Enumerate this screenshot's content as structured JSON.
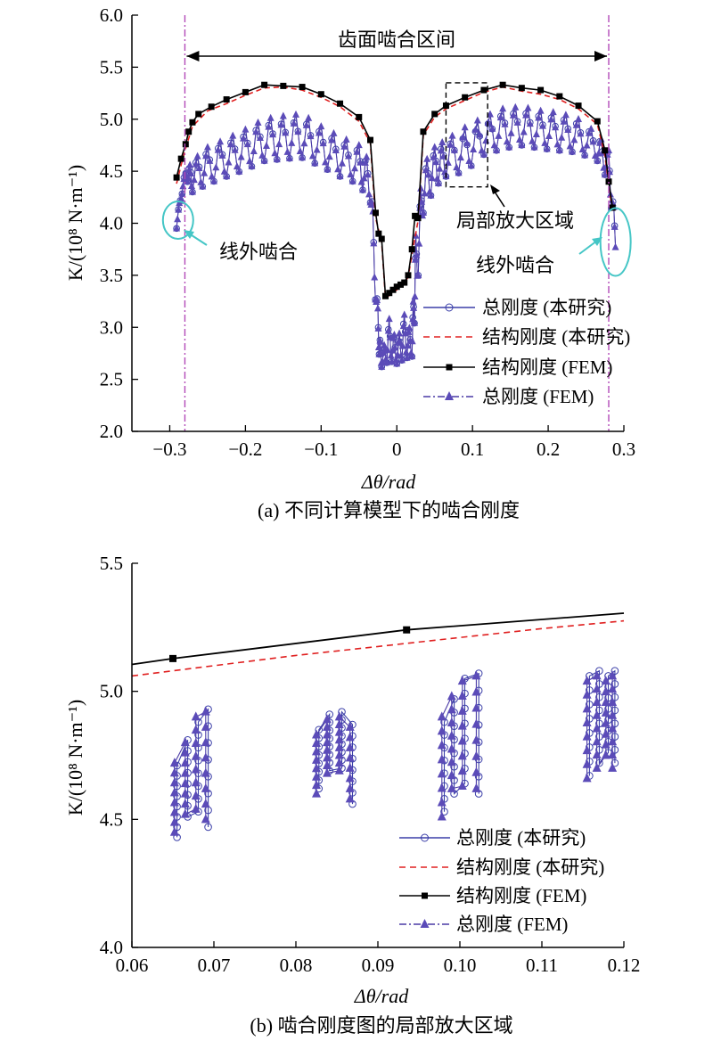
{
  "chart_data": [
    {
      "type": "line",
      "caption": "(a) 不同计算模型下的啮合刚度",
      "xlabel": "Δθ/rad",
      "ylabel": "K/(10⁸ N·m⁻¹)",
      "xlim": [
        -0.35,
        0.3
      ],
      "ylim": [
        2.0,
        6.0
      ],
      "xticks": [
        "−0.3",
        "−0.2",
        "−0.1",
        "0",
        "0.1",
        "0.2",
        "0.3"
      ],
      "yticks": [
        "2.0",
        "2.5",
        "3.0",
        "3.5",
        "4.0",
        "4.5",
        "5.0",
        "5.5",
        "6.0"
      ],
      "grid": false,
      "legend_position": "bottom-right",
      "legend": [
        "总刚度 (本研究)",
        "结构刚度 (本研究)",
        "结构刚度 (FEM)",
        "总刚度 (FEM)"
      ],
      "annotations": {
        "mesh_interval": "齿面啮合区间",
        "mesh_interval_range": [
          -0.28,
          0.28
        ],
        "zoom_region": "局部放大区域",
        "zoom_box": [
          0.065,
          0.12,
          4.35,
          5.35
        ],
        "outside_mesh_left": "线外啮合",
        "outside_mesh_right": "线外啮合"
      },
      "series": [
        {
          "name": "结构刚度 (FEM)",
          "x": [
            -0.291,
            -0.285,
            -0.279,
            -0.275,
            -0.27,
            -0.262,
            -0.245,
            -0.225,
            -0.2,
            -0.175,
            -0.15,
            -0.125,
            -0.1,
            -0.075,
            -0.05,
            -0.035,
            -0.028,
            -0.024,
            -0.02,
            -0.015,
            -0.01,
            -0.005,
            0.0,
            0.005,
            0.01,
            0.015,
            0.02,
            0.024,
            0.028,
            0.035,
            0.05,
            0.065,
            0.09,
            0.115,
            0.14,
            0.165,
            0.19,
            0.215,
            0.24,
            0.265,
            0.275,
            0.28,
            0.285
          ],
          "values": [
            4.44,
            4.62,
            4.76,
            4.88,
            4.97,
            5.05,
            5.12,
            5.19,
            5.26,
            5.33,
            5.32,
            5.31,
            5.24,
            5.15,
            5.02,
            4.8,
            4.1,
            3.9,
            3.85,
            3.3,
            3.33,
            3.36,
            3.39,
            3.41,
            3.43,
            3.5,
            3.75,
            4.07,
            4.05,
            4.88,
            5.05,
            5.13,
            5.21,
            5.28,
            5.33,
            5.3,
            5.28,
            5.22,
            5.13,
            4.98,
            4.7,
            4.4,
            4.15
          ]
        },
        {
          "name": "结构刚度 (本研究)",
          "x": [
            -0.291,
            -0.285,
            -0.279,
            -0.27,
            -0.25,
            -0.225,
            -0.2,
            -0.175,
            -0.15,
            -0.125,
            -0.1,
            -0.075,
            -0.05,
            -0.035,
            -0.028,
            -0.02,
            -0.015,
            0.0,
            0.015,
            0.02,
            0.028,
            0.035,
            0.05,
            0.065,
            0.09,
            0.115,
            0.14,
            0.165,
            0.19,
            0.215,
            0.24,
            0.265,
            0.275,
            0.285
          ],
          "values": [
            4.38,
            4.56,
            4.72,
            4.93,
            5.08,
            5.15,
            5.23,
            5.3,
            5.31,
            5.28,
            5.21,
            5.12,
            4.98,
            4.77,
            4.05,
            3.82,
            3.28,
            3.36,
            3.48,
            3.7,
            4.02,
            4.85,
            5.02,
            5.1,
            5.18,
            5.26,
            5.31,
            5.27,
            5.24,
            5.19,
            5.1,
            4.95,
            4.65,
            4.1
          ]
        },
        {
          "name": "总刚度 (本研究)",
          "note": "dense oscillating series; envelope sampled",
          "x": [
            -0.291,
            -0.28,
            -0.27,
            -0.25,
            -0.225,
            -0.2,
            -0.175,
            -0.15,
            -0.125,
            -0.1,
            -0.075,
            -0.05,
            -0.035,
            -0.025,
            -0.02,
            -0.01,
            0.0,
            0.01,
            0.02,
            0.025,
            0.035,
            0.05,
            0.065,
            0.09,
            0.115,
            0.14,
            0.165,
            0.19,
            0.215,
            0.24,
            0.265,
            0.28,
            0.29
          ],
          "values": [
            4.05,
            4.5,
            4.62,
            4.75,
            4.83,
            4.92,
            5.02,
            5.04,
            5.06,
            4.95,
            4.85,
            4.77,
            4.6,
            3.2,
            2.7,
            3.1,
            2.85,
            3.15,
            2.95,
            3.9,
            4.58,
            4.75,
            4.82,
            4.9,
            5.0,
            5.12,
            5.14,
            5.1,
            5.08,
            5.02,
            4.88,
            4.72,
            3.9
          ],
          "min_values": [
            3.95,
            4.45,
            4.3,
            4.38,
            4.45,
            4.52,
            4.6,
            4.62,
            4.63,
            4.55,
            4.45,
            4.38,
            4.2,
            2.8,
            2.62,
            2.68,
            2.65,
            2.7,
            2.72,
            3.2,
            4.1,
            4.35,
            4.45,
            4.5,
            4.66,
            4.72,
            4.75,
            4.72,
            4.7,
            4.68,
            4.6,
            4.4,
            3.65
          ]
        },
        {
          "name": "总刚度 (FEM)",
          "note": "dense oscillating series; envelope sampled",
          "x": [
            -0.291,
            -0.28,
            -0.27,
            -0.25,
            -0.225,
            -0.2,
            -0.175,
            -0.15,
            -0.125,
            -0.1,
            -0.075,
            -0.05,
            -0.035,
            -0.025,
            -0.02,
            -0.01,
            0.0,
            0.01,
            0.02,
            0.025,
            0.035,
            0.05,
            0.065,
            0.09,
            0.115,
            0.14,
            0.165,
            0.19,
            0.215,
            0.24,
            0.265,
            0.28,
            0.29
          ],
          "values": [
            4.05,
            4.48,
            4.6,
            4.73,
            4.81,
            4.9,
            5.0,
            5.03,
            5.05,
            4.93,
            4.83,
            4.75,
            4.58,
            3.18,
            2.7,
            3.08,
            2.85,
            3.12,
            2.93,
            3.88,
            4.56,
            4.73,
            4.8,
            4.92,
            5.02,
            5.1,
            5.12,
            5.08,
            5.06,
            5.0,
            4.86,
            4.7,
            3.88
          ],
          "min_values": [
            3.95,
            4.45,
            4.3,
            4.38,
            4.45,
            4.52,
            4.6,
            4.62,
            4.63,
            4.55,
            4.45,
            4.38,
            4.2,
            2.8,
            2.62,
            2.68,
            2.65,
            2.7,
            2.72,
            3.2,
            4.1,
            4.35,
            4.45,
            4.5,
            4.66,
            4.72,
            4.75,
            4.72,
            4.7,
            4.68,
            4.6,
            4.4,
            3.65
          ]
        }
      ]
    },
    {
      "type": "line",
      "caption": "(b) 啮合刚度图的局部放大区域",
      "xlabel": "Δθ/rad",
      "ylabel": "K/(10⁸ N·m⁻¹)",
      "xlim": [
        0.06,
        0.12
      ],
      "ylim": [
        4.0,
        5.5
      ],
      "xticks": [
        "0.06",
        "0.07",
        "0.08",
        "0.09",
        "0.10",
        "0.11",
        "0.12"
      ],
      "yticks": [
        "4.0",
        "4.5",
        "5.0",
        "5.5"
      ],
      "grid": false,
      "legend_position": "bottom-right",
      "legend": [
        "总刚度 (本研究)",
        "结构刚度 (本研究)",
        "结构刚度 (FEM)",
        "总刚度 (FEM)"
      ],
      "series": [
        {
          "name": "结构刚度 (FEM)",
          "x": [
            0.06,
            0.065,
            0.0935,
            0.12
          ],
          "values": [
            5.105,
            5.128,
            5.24,
            5.305
          ],
          "markers_at": [
            0.065,
            0.0935
          ]
        },
        {
          "name": "结构刚度 (本研究)",
          "x": [
            0.06,
            0.07,
            0.08,
            0.09,
            0.1,
            0.11,
            0.12
          ],
          "values": [
            5.06,
            5.1,
            5.14,
            5.175,
            5.21,
            5.245,
            5.275
          ]
        },
        {
          "name": "总刚度 (本研究)",
          "clusters": [
            {
              "x": [
                0.0652,
                0.0665,
                0.0678,
                0.069
              ],
              "min": [
                4.43,
                4.51,
                4.53,
                4.47
              ],
              "max": [
                4.71,
                4.81,
                4.88,
                4.93
              ]
            },
            {
              "x": [
                0.0825,
                0.0838,
                0.0853,
                0.0866
              ],
              "min": [
                4.62,
                4.69,
                4.7,
                4.56
              ],
              "max": [
                4.85,
                4.91,
                4.92,
                4.87
              ]
            },
            {
              "x": [
                0.0978,
                0.099,
                0.1003,
                0.102
              ],
              "min": [
                4.53,
                4.6,
                4.64,
                4.6
              ],
              "max": [
                4.88,
                4.97,
                5.05,
                5.07
              ]
            },
            {
              "x": [
                0.1155,
                0.1167,
                0.1178,
                0.1186
              ],
              "min": [
                4.67,
                4.72,
                4.76,
                4.72
              ],
              "max": [
                5.06,
                5.08,
                5.06,
                5.08
              ]
            }
          ]
        },
        {
          "name": "总刚度 (FEM)",
          "clusters": [
            {
              "x": [
                0.0652,
                0.0665,
                0.0678,
                0.069
              ],
              "min": [
                4.45,
                4.52,
                4.54,
                4.5
              ],
              "max": [
                4.72,
                4.8,
                4.9,
                4.92
              ]
            },
            {
              "x": [
                0.0825,
                0.0838,
                0.0853,
                0.0866
              ],
              "min": [
                4.6,
                4.68,
                4.69,
                4.58
              ],
              "max": [
                4.83,
                4.89,
                4.9,
                4.86
              ]
            },
            {
              "x": [
                0.0978,
                0.099,
                0.1003,
                0.102
              ],
              "min": [
                4.51,
                4.62,
                4.63,
                4.62
              ],
              "max": [
                4.9,
                4.98,
                5.04,
                5.06
              ]
            },
            {
              "x": [
                0.1155,
                0.1167,
                0.1178,
                0.1186
              ],
              "min": [
                4.66,
                4.7,
                4.75,
                4.7
              ],
              "max": [
                5.04,
                5.06,
                5.04,
                5.06
              ]
            }
          ]
        }
      ]
    }
  ],
  "colors": {
    "total_study": "#3b3fa8",
    "struct_study": "#e02020",
    "struct_fem": "#000000",
    "total_fem": "#4a3aa6",
    "marker_fill": "#5b4bb8",
    "mesh_line": "#b24ab8",
    "highlight": "#45c6c6",
    "zoom_box": "#000000"
  }
}
